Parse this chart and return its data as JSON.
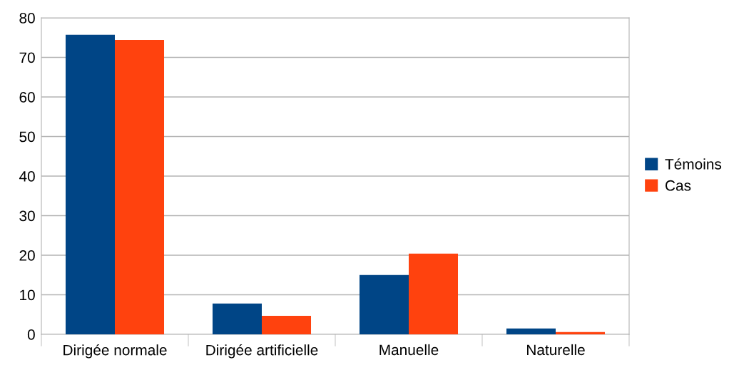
{
  "chart_data": {
    "type": "bar",
    "categories": [
      "Dirigée normale",
      "Dirigée artificielle",
      "Manuelle",
      "Naturelle"
    ],
    "series": [
      {
        "name": "Témoins",
        "color": "#004586",
        "values": [
          75.7,
          7.8,
          15.0,
          1.5
        ]
      },
      {
        "name": "Cas",
        "color": "#ff420e",
        "values": [
          74.4,
          4.7,
          20.4,
          0.6
        ]
      }
    ],
    "ylim": [
      0,
      80
    ],
    "yticks": [
      0,
      10,
      20,
      30,
      40,
      50,
      60,
      70,
      80
    ],
    "grid": "y",
    "legend": "right"
  }
}
